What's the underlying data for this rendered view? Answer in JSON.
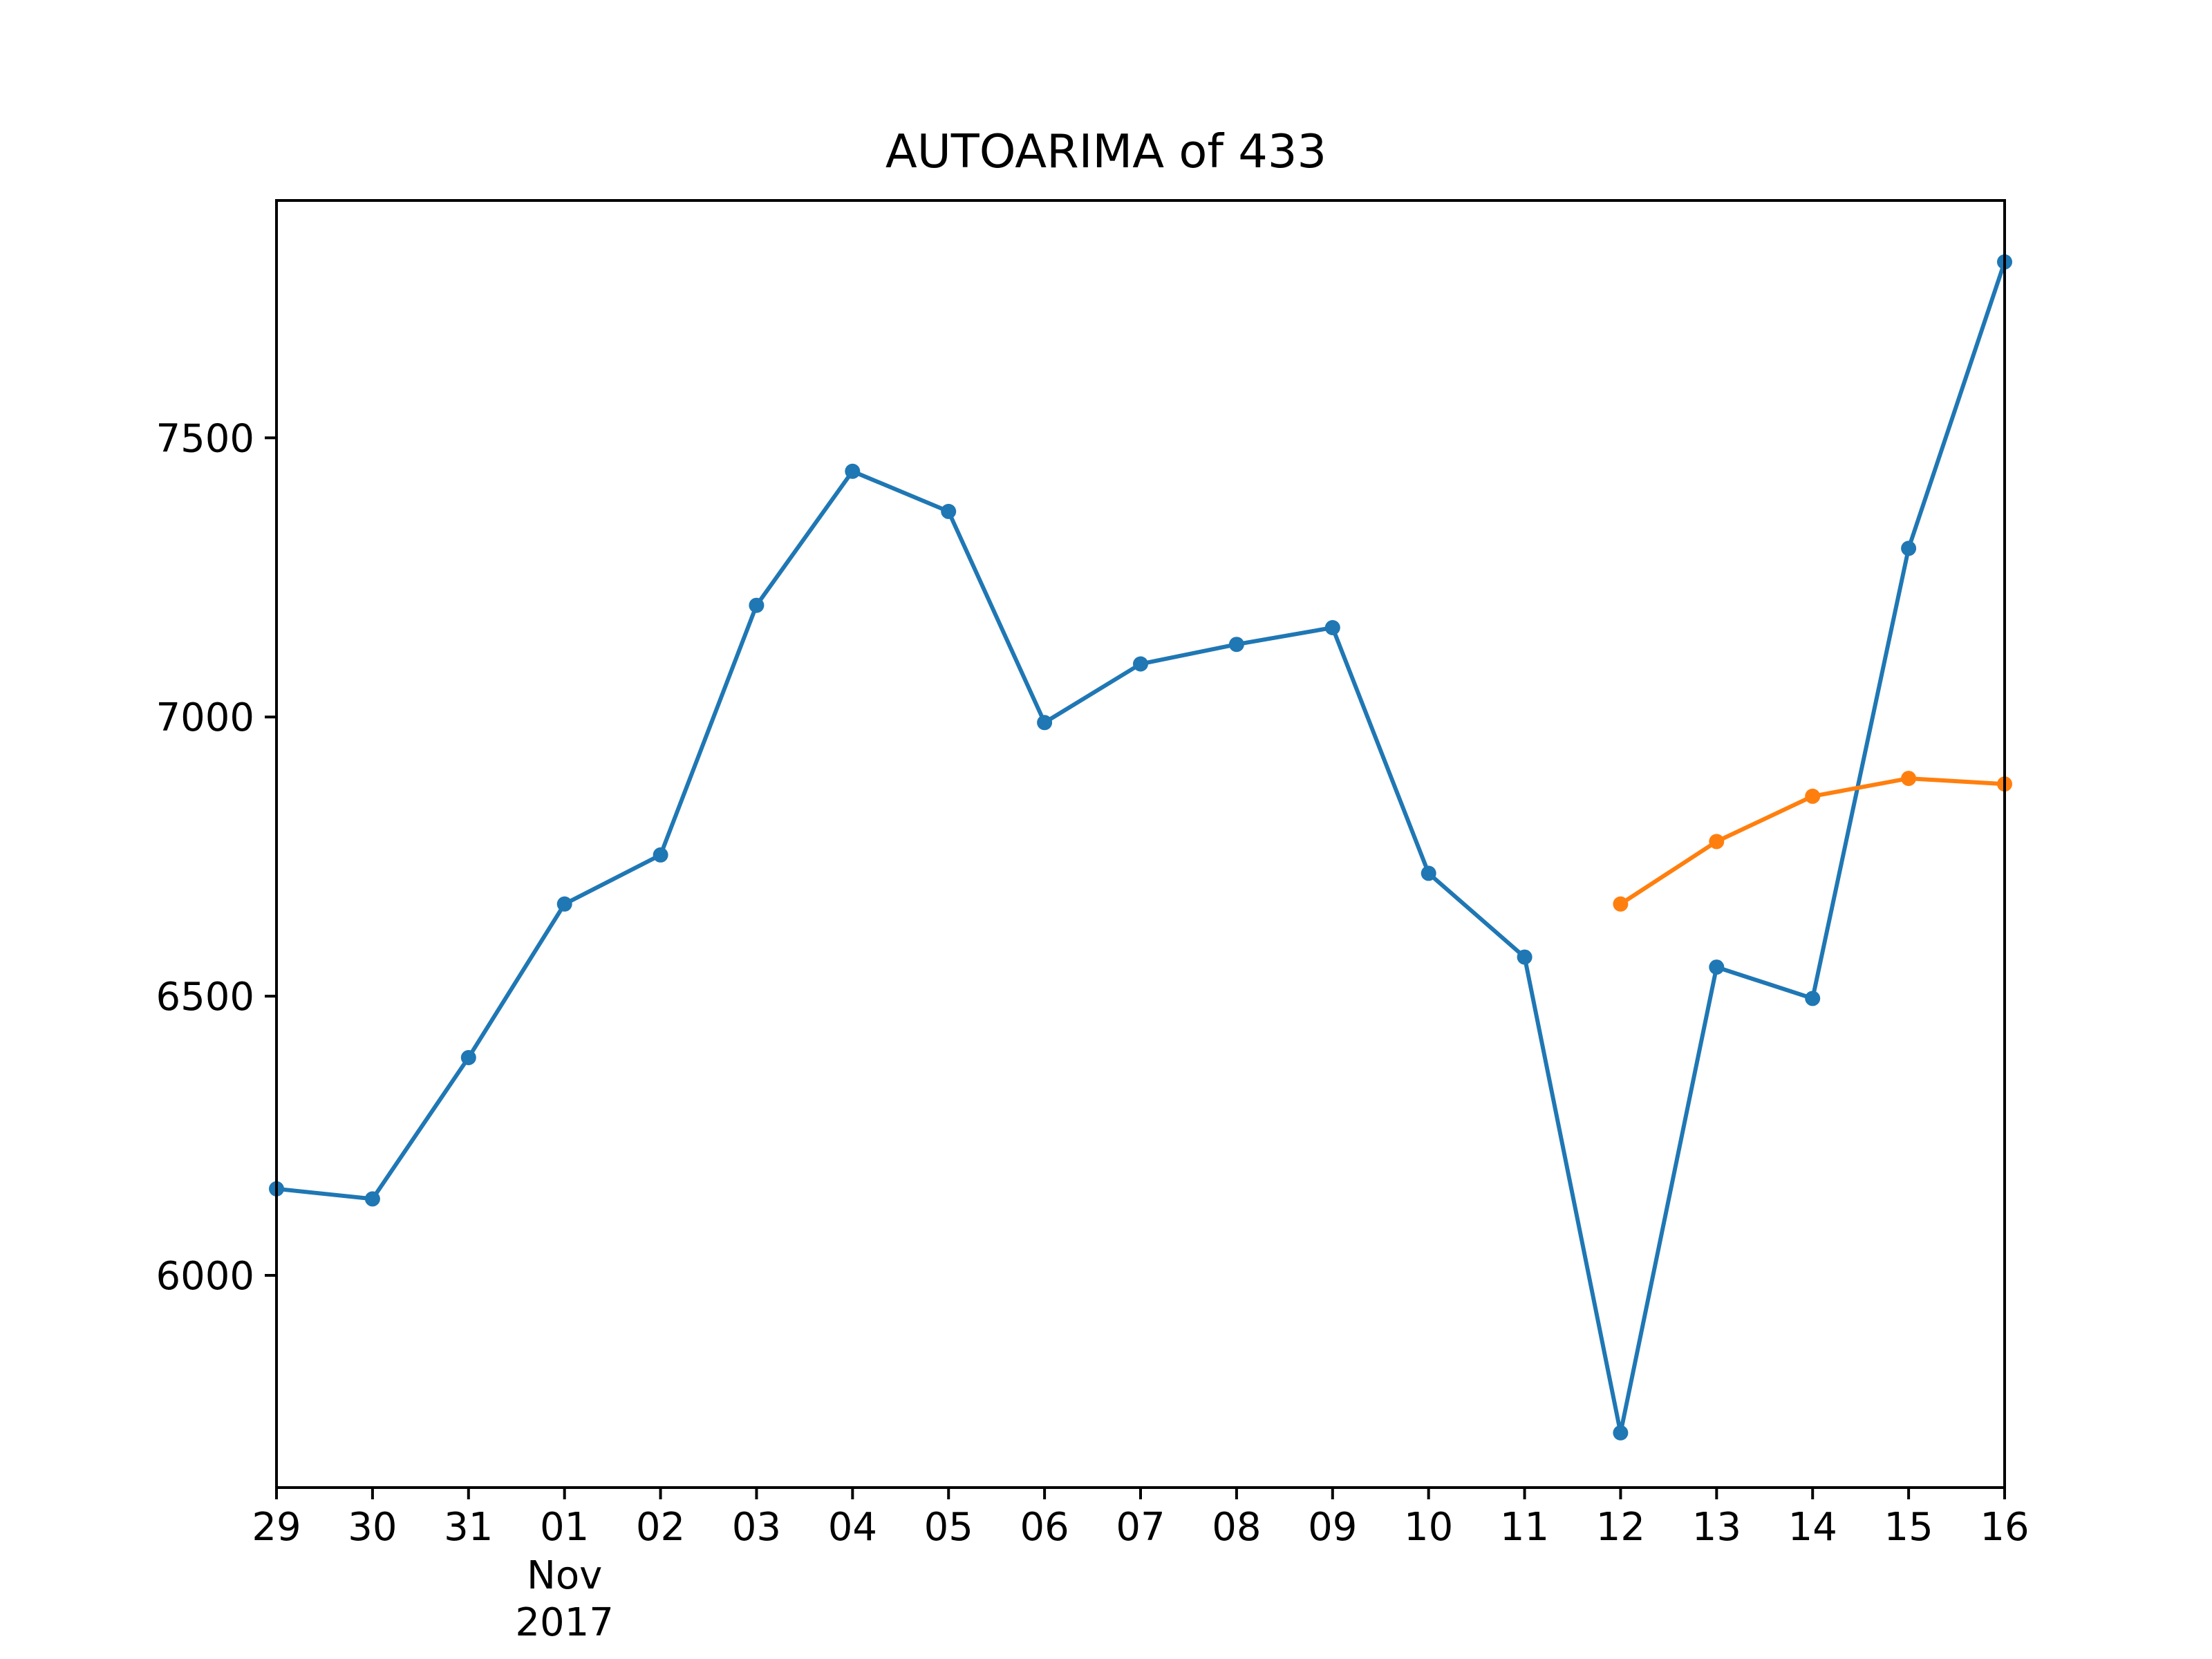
{
  "chart_data": {
    "type": "line",
    "title": "AUTOARIMA of 433",
    "xlabel": "",
    "ylabel": "",
    "x_ticks": [
      "29",
      "30",
      "31",
      "01",
      "02",
      "03",
      "04",
      "05",
      "06",
      "07",
      "08",
      "09",
      "10",
      "11",
      "12",
      "13",
      "14",
      "15",
      "16"
    ],
    "x_secondary_label": [
      "Nov",
      "2017"
    ],
    "x_range": [
      "2017-10-29",
      "2017-11-16"
    ],
    "y_ticks": [
      6000,
      6500,
      7000,
      7500
    ],
    "ylim": [
      5620,
      7925
    ],
    "grid": false,
    "legend": "none",
    "series": [
      {
        "color": "#1f77b4",
        "points": [
          {
            "x": "2017-10-29",
            "y": 6155
          },
          {
            "x": "2017-10-30",
            "y": 6137
          },
          {
            "x": "2017-10-31",
            "y": 6390
          },
          {
            "x": "2017-11-01",
            "y": 6665
          },
          {
            "x": "2017-11-02",
            "y": 6753
          },
          {
            "x": "2017-11-03",
            "y": 7200
          },
          {
            "x": "2017-11-04",
            "y": 7440
          },
          {
            "x": "2017-11-05",
            "y": 7368
          },
          {
            "x": "2017-11-06",
            "y": 6990
          },
          {
            "x": "2017-11-07",
            "y": 7095
          },
          {
            "x": "2017-11-08",
            "y": 7130
          },
          {
            "x": "2017-11-09",
            "y": 7160
          },
          {
            "x": "2017-11-10",
            "y": 6720
          },
          {
            "x": "2017-11-11",
            "y": 6570
          },
          {
            "x": "2017-11-12",
            "y": 5718
          },
          {
            "x": "2017-11-13",
            "y": 6552
          },
          {
            "x": "2017-11-14",
            "y": 6496
          },
          {
            "x": "2017-11-15",
            "y": 7302
          },
          {
            "x": "2017-11-16",
            "y": 7815
          }
        ]
      },
      {
        "color": "#ff7f0e",
        "points": [
          {
            "x": "2017-11-12",
            "y": 6665
          },
          {
            "x": "2017-11-13",
            "y": 6777
          },
          {
            "x": "2017-11-14",
            "y": 6858
          },
          {
            "x": "2017-11-15",
            "y": 6890
          },
          {
            "x": "2017-11-16",
            "y": 6880
          }
        ]
      }
    ]
  }
}
